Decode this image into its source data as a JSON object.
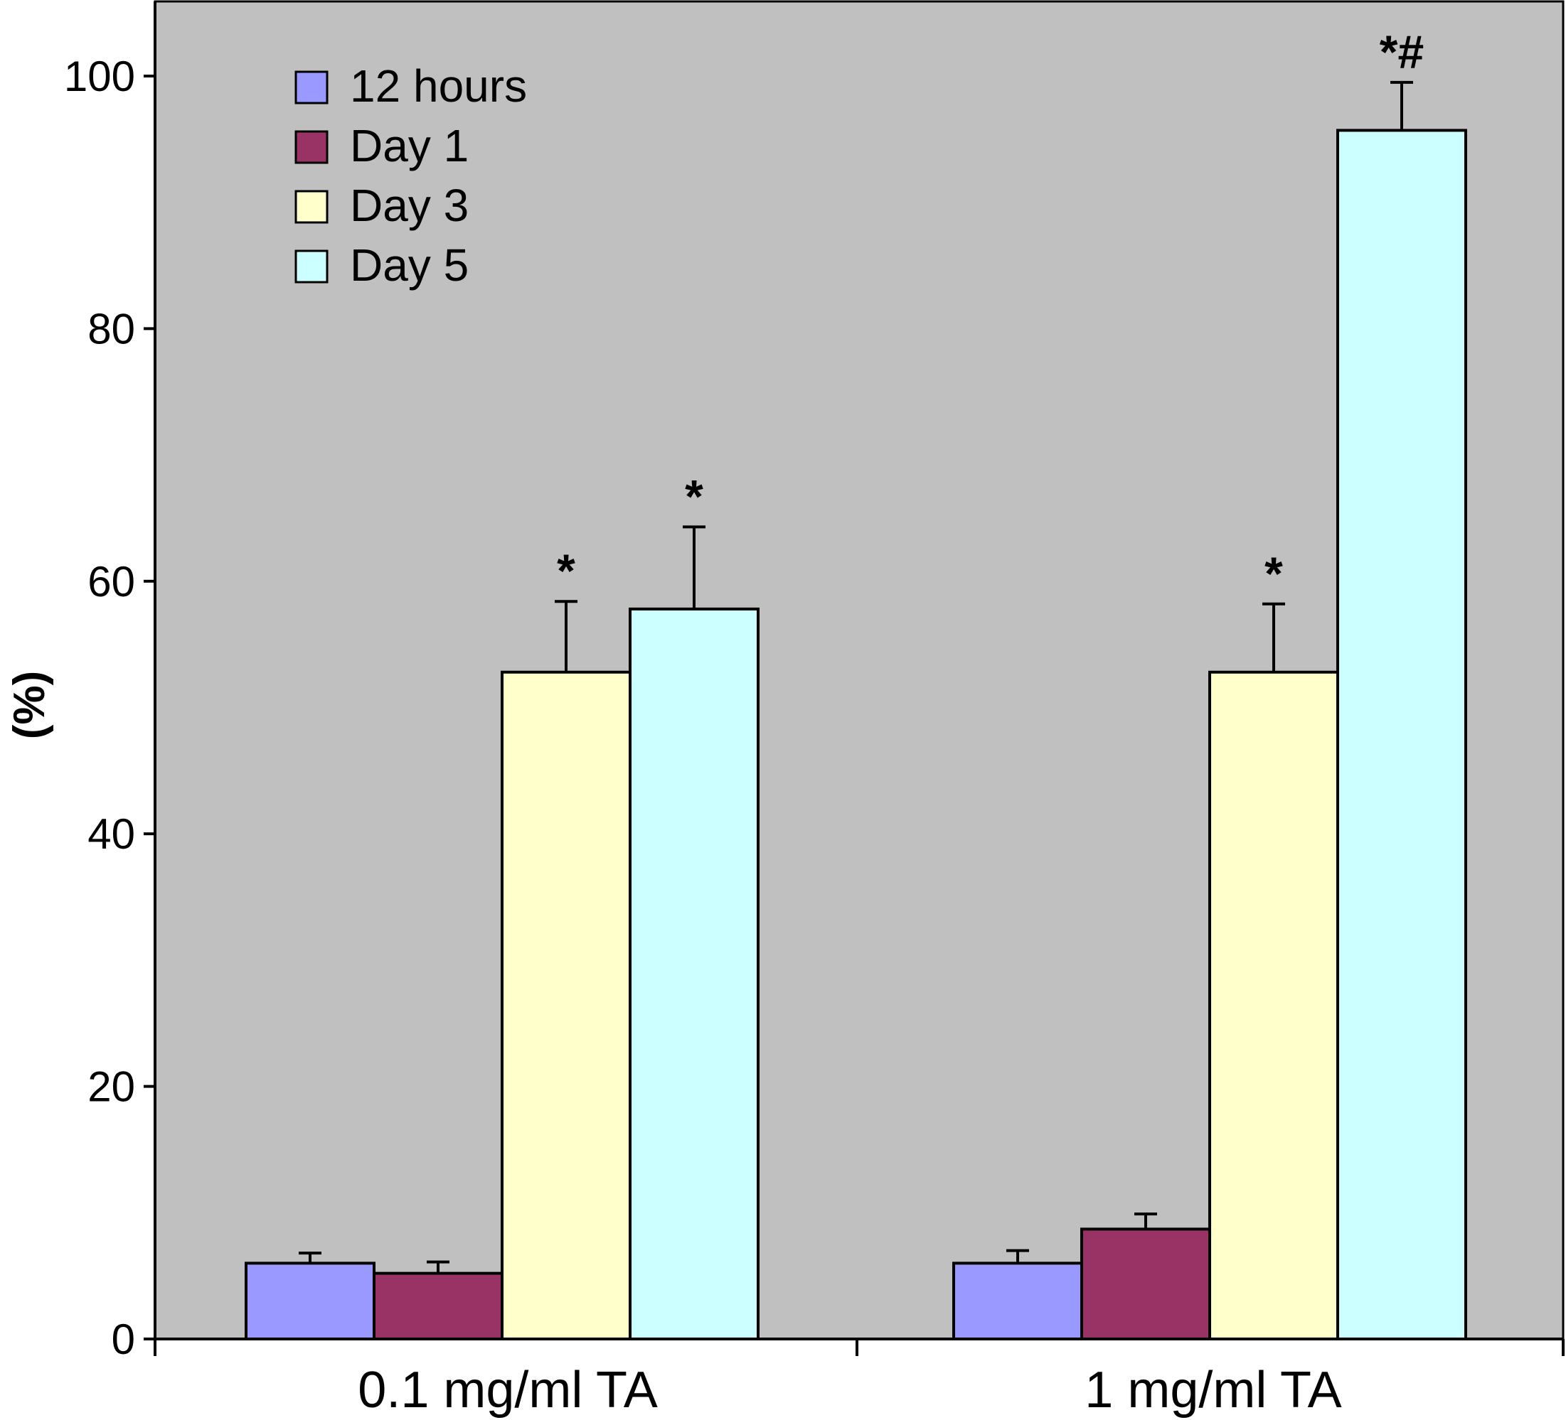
{
  "chart_data": {
    "type": "bar",
    "categories": [
      "0.1 mg/ml TA",
      "1 mg/ml TA"
    ],
    "ylabel": "(%)",
    "ylim": [
      0,
      100
    ],
    "yticks": [
      0,
      20,
      40,
      60,
      80,
      100
    ],
    "legend_position": "top-left",
    "grid": false,
    "series": [
      {
        "name": "12 hours",
        "color": "#9999ff",
        "values": [
          6.0,
          6.0
        ],
        "errors": [
          0.8,
          1.0
        ],
        "annotations": [
          "",
          ""
        ]
      },
      {
        "name": "Day 1",
        "color": "#993366",
        "values": [
          5.2,
          8.7
        ],
        "errors": [
          0.9,
          1.2
        ],
        "annotations": [
          "",
          ""
        ]
      },
      {
        "name": "Day 3",
        "color": "#ffffcc",
        "values": [
          52.8,
          52.8
        ],
        "errors": [
          5.6,
          5.4
        ],
        "annotations": [
          "*",
          "*"
        ]
      },
      {
        "name": "Day 5",
        "color": "#ccffff",
        "values": [
          57.8,
          95.7
        ],
        "errors": [
          6.5,
          3.8
        ],
        "annotations": [
          "*",
          "*#"
        ]
      }
    ],
    "plot_background": "#c0c0c0"
  }
}
